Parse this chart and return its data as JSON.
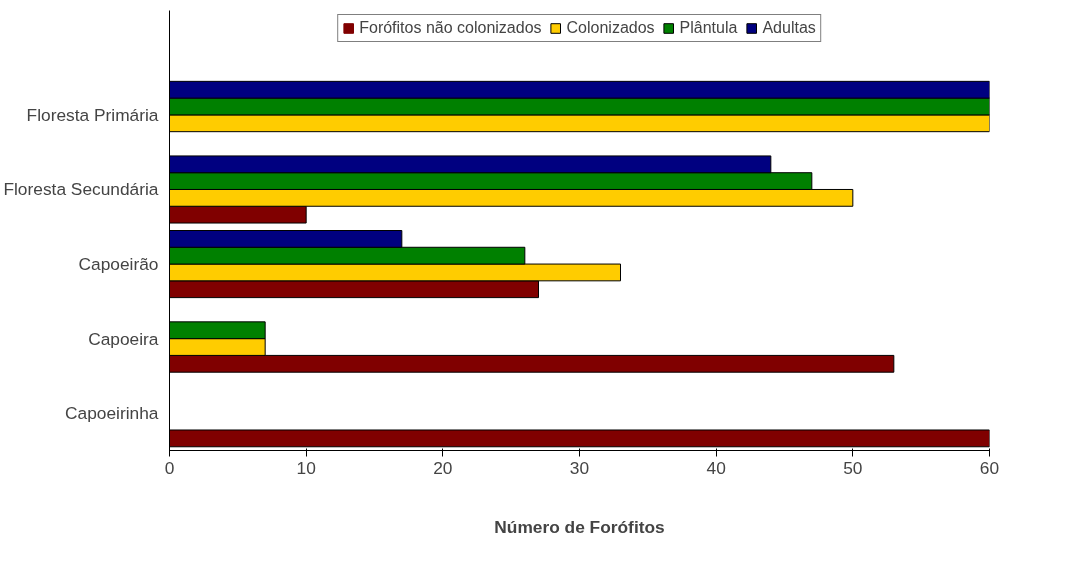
{
  "chart_data": {
    "type": "bar",
    "orientation": "horizontal",
    "xlabel": "Número de Forófitos",
    "categories": [
      "Floresta Primária",
      "Floresta Secundária",
      "Capoeirão",
      "Capoeira",
      "Capoeirinha"
    ],
    "series": [
      {
        "name": "Forófitos não colonizados",
        "color": "#800000",
        "values": [
          0,
          10,
          27,
          53,
          60
        ]
      },
      {
        "name": "Colonizados",
        "color": "#ffcc00",
        "values": [
          60,
          50,
          33,
          7,
          0
        ]
      },
      {
        "name": "Plântula",
        "color": "#008000",
        "values": [
          60,
          47,
          26,
          7,
          0
        ]
      },
      {
        "name": "Adultas",
        "color": "#000080",
        "values": [
          60,
          44,
          17,
          0,
          0
        ]
      }
    ],
    "xlim": [
      0,
      60
    ],
    "xticks": [
      0,
      10,
      20,
      30,
      40,
      50,
      60
    ],
    "grid": false,
    "legend": "top"
  }
}
